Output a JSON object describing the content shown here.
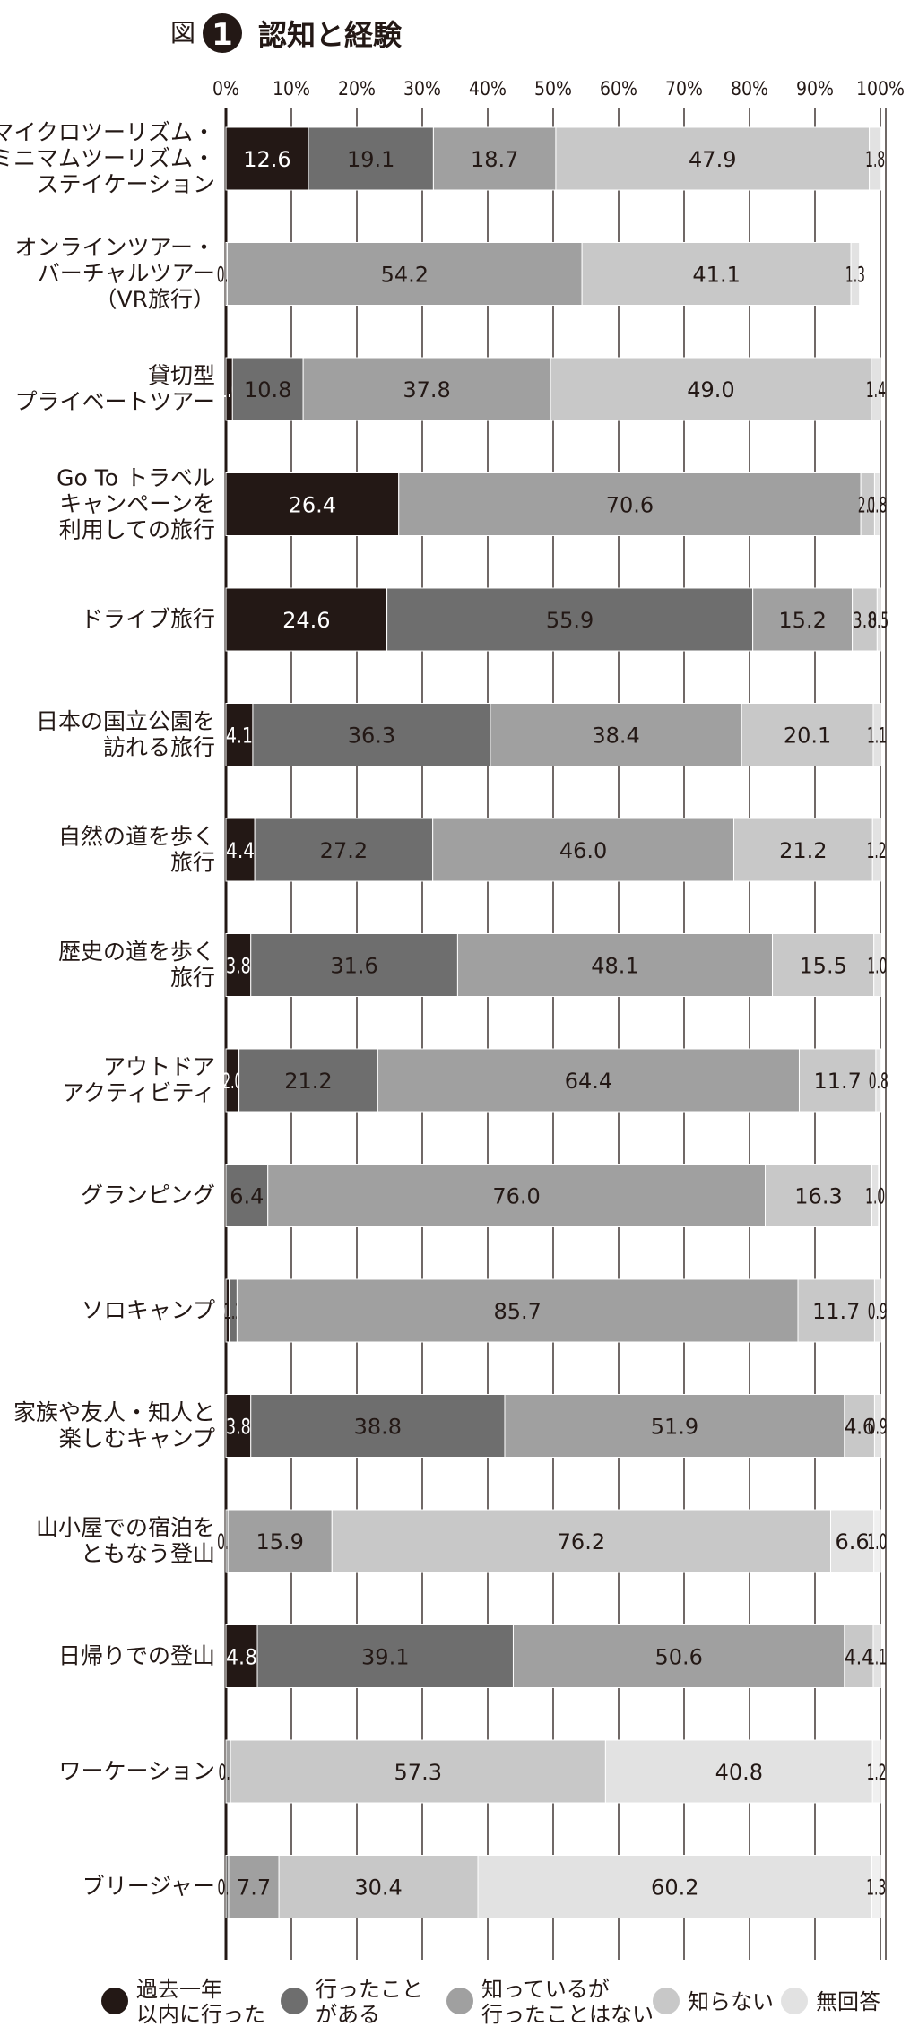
{
  "figure": {
    "prefix": "図",
    "number": "1",
    "title": "認知と経験"
  },
  "chart_data": {
    "type": "bar",
    "orientation": "horizontal",
    "stacked": true,
    "title": "認知と経験",
    "xlim": [
      0,
      100
    ],
    "x_ticks": [
      "0%",
      "10%",
      "20%",
      "30%",
      "40%",
      "50%",
      "60%",
      "70%",
      "80%",
      "90%",
      "100%"
    ],
    "grid": true,
    "legend_position": "bottom",
    "categories": [
      [
        "マイクロツーリズム・",
        "ミニマムツーリズム・",
        "ステイケーション"
      ],
      [
        "オンラインツアー・",
        "バーチャルツアー",
        "（VR旅行）"
      ],
      [
        "貸切型",
        "プライベートツアー"
      ],
      [
        "Go To トラベル",
        "キャンペーンを",
        "利用しての旅行"
      ],
      [
        "ドライブ旅行"
      ],
      [
        "日本の国立公園を",
        "訪れる旅行"
      ],
      [
        "自然の道を歩く",
        "旅行"
      ],
      [
        "歴史の道を歩く",
        "旅行"
      ],
      [
        "アウトドア",
        "アクティビティ"
      ],
      [
        "グランピング"
      ],
      [
        "ソロキャンプ"
      ],
      [
        "家族や友人・知人と",
        "楽しむキャンプ"
      ],
      [
        "山小屋での宿泊を",
        "ともなう登山"
      ],
      [
        "日帰りでの登山"
      ],
      [
        "ワーケーション"
      ],
      [
        "ブリージャー"
      ]
    ],
    "series": [
      {
        "name": "過去一年以内に行った",
        "legend_lines": [
          "過去一年",
          "以内に行った"
        ],
        "color": "#231815",
        "label_color": "#ffffff",
        "values": [
          12.6,
          0,
          1.0,
          26.4,
          24.6,
          4.1,
          4.4,
          3.8,
          2.0,
          0,
          0.5,
          3.8,
          0,
          4.8,
          0,
          0
        ],
        "labels": [
          "12.6",
          "",
          "1.0",
          "26.4",
          "24.6",
          "4.1",
          "4.4",
          "3.8",
          "2.0",
          "",
          "0.5",
          "3.8",
          "",
          "4.8",
          "",
          ""
        ]
      },
      {
        "name": "行ったことがある",
        "legend_lines": [
          "行ったこと",
          "がある"
        ],
        "color": "#6e6e6e",
        "label_color": "#231815",
        "values": [
          19.1,
          0.2,
          10.8,
          0,
          55.9,
          36.3,
          27.2,
          31.6,
          21.2,
          6.4,
          1.2,
          38.8,
          0.3,
          39.1,
          0,
          0.4
        ],
        "labels": [
          "19.1",
          "0.2",
          "10.8",
          "",
          "55.9",
          "36.3",
          "27.2",
          "31.6",
          "21.2",
          "6.4",
          "1.2",
          "38.8",
          "0.3",
          "39.1",
          "",
          "0.4"
        ]
      },
      {
        "name": "知っているが行ったことはない",
        "legend_lines": [
          "知っているが",
          "行ったことはない"
        ],
        "color": "#a0a0a0",
        "label_color": "#231815",
        "values": [
          18.7,
          54.2,
          37.8,
          70.6,
          15.2,
          38.4,
          46.0,
          48.1,
          64.4,
          76.0,
          85.7,
          51.9,
          15.9,
          50.6,
          0.7,
          7.7
        ],
        "labels": [
          "18.7",
          "54.2",
          "37.8",
          "70.6",
          "15.2",
          "38.4",
          "46.0",
          "48.1",
          "64.4",
          "76.0",
          "85.7",
          "51.9",
          "15.9",
          "50.6",
          "0.7",
          "7.7"
        ]
      },
      {
        "name": "知らない",
        "legend_lines": [
          "知らない"
        ],
        "color": "#c8c8c8",
        "label_color": "#231815",
        "values": [
          47.9,
          41.1,
          49.0,
          2.1,
          3.8,
          20.1,
          21.2,
          15.5,
          11.7,
          16.3,
          11.7,
          4.6,
          76.2,
          4.4,
          57.3,
          30.4
        ],
        "labels": [
          "47.9",
          "41.1",
          "49.0",
          "2.1",
          "3.8",
          "20.1",
          "21.2",
          "15.5",
          "11.7",
          "16.3",
          "11.7",
          "4.6",
          "76.2",
          "4.4",
          "57.3",
          "30.4"
        ]
      },
      {
        "name": "無回答",
        "legend_lines": [
          "無回答"
        ],
        "color": "#e2e2e2",
        "label_color": "#231815",
        "values": [
          1.8,
          1.3,
          1.4,
          0.8,
          0.5,
          1.1,
          1.2,
          1.0,
          0.8,
          1.0,
          0.9,
          0.9,
          6.6,
          1.1,
          40.8,
          60.2
        ],
        "labels": [
          "1.8",
          "1.3",
          "1.4",
          "0.8",
          "0.5",
          "1.1",
          "1.2",
          "1.0",
          "0.8",
          "1.0",
          "0.9",
          "0.9",
          "6.6",
          "1.1",
          "40.8",
          "60.2"
        ]
      },
      {
        "name": "",
        "color": "#f0f0f0",
        "label_color": "#231815",
        "in_legend": false,
        "values": [
          0,
          0,
          0,
          0,
          0,
          0,
          0,
          0,
          0,
          0,
          0,
          0,
          1.0,
          0,
          1.2,
          1.3
        ],
        "labels": [
          "",
          "",
          "",
          "",
          "",
          "",
          "",
          "",
          "",
          "",
          "",
          "",
          "1.0",
          "",
          "1.2",
          "1.3"
        ]
      }
    ]
  }
}
